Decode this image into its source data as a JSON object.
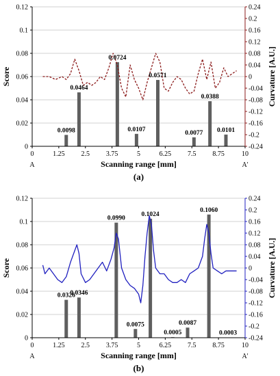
{
  "colors": {
    "bar": "#5f5f5f",
    "grid": "#d0d0d0",
    "curve_a": "#8b1a1a",
    "curve_b": "#1f1fbf",
    "axis_left": "#000000"
  },
  "chart_data": [
    {
      "type": "bar",
      "panel_label": "(a)",
      "xlabel": "Scanning range [mm]",
      "ylabel": "Score",
      "ylabel_right": "Curvature [A.U.]",
      "x_start_label": "A",
      "x_end_label": "A'",
      "xlim": [
        0,
        10
      ],
      "ylim": [
        0,
        0.12
      ],
      "ylim_right": [
        -0.24,
        0.24
      ],
      "x_ticks": [
        "0",
        "1.25",
        "2.5",
        "3.75",
        "5",
        "6.25",
        "7.5",
        "8.75",
        "10"
      ],
      "y_ticks": [
        "0",
        "0.02",
        "0.04",
        "0.06",
        "0.08",
        "0.1",
        "0.12"
      ],
      "y_ticks_right": [
        "-0.24",
        "-0.2",
        "-0.16",
        "-0.12",
        "-0.08",
        "-0.04",
        "0",
        "0.04",
        "0.08",
        "0.12",
        "0.16",
        "0.2",
        "0.24"
      ],
      "grid": "horizontal",
      "bars": {
        "x": [
          1.6,
          2.2,
          4.0,
          4.9,
          5.9,
          7.6,
          8.35,
          9.1
        ],
        "values": [
          0.0098,
          0.0464,
          0.0724,
          0.0107,
          0.0571,
          0.0077,
          0.0388,
          0.0101
        ],
        "labels": [
          "0.0098",
          "0.0464",
          "0.0724",
          "0.0107",
          "0.0571",
          "0.0077",
          "0.0388",
          "0.0101"
        ]
      },
      "curve": {
        "style": "dashed",
        "x": [
          0.5,
          0.8,
          1.1,
          1.4,
          1.6,
          1.8,
          2.0,
          2.2,
          2.4,
          2.6,
          2.8,
          3.0,
          3.2,
          3.4,
          3.6,
          3.8,
          4.0,
          4.2,
          4.4,
          4.6,
          4.8,
          5.0,
          5.2,
          5.4,
          5.6,
          5.8,
          6.0,
          6.2,
          6.4,
          6.6,
          6.8,
          7.0,
          7.2,
          7.4,
          7.6,
          7.8,
          8.0,
          8.2,
          8.4,
          8.6,
          8.8,
          9.0,
          9.2,
          9.4,
          9.6
        ],
        "y": [
          0.0,
          0.0,
          -0.01,
          0.0,
          -0.01,
          0.01,
          0.06,
          0.02,
          -0.03,
          -0.02,
          -0.03,
          -0.02,
          0.0,
          -0.01,
          0.03,
          0.08,
          0.04,
          -0.04,
          -0.07,
          0.04,
          -0.01,
          -0.04,
          -0.08,
          -0.02,
          0.03,
          0.08,
          0.05,
          -0.04,
          -0.05,
          -0.02,
          0.0,
          -0.01,
          -0.04,
          -0.06,
          -0.05,
          0.01,
          0.06,
          -0.01,
          0.05,
          -0.04,
          -0.02,
          0.03,
          0.0,
          0.01,
          0.02
        ]
      }
    },
    {
      "type": "bar",
      "panel_label": "(b)",
      "xlabel": "Scanning range [mm]",
      "ylabel": "Score",
      "ylabel_right": "Curvature [A.U.]",
      "x_start_label": "A",
      "x_end_label": "A'",
      "xlim": [
        0,
        10
      ],
      "ylim": [
        0,
        0.12
      ],
      "ylim_right": [
        -0.24,
        0.24
      ],
      "x_ticks": [
        "0",
        "1.25",
        "2.5",
        "3.75",
        "5",
        "6.25",
        "7.5",
        "8.75",
        "10"
      ],
      "y_ticks": [
        "0",
        "0.02",
        "0.04",
        "0.06",
        "0.08",
        "0.1",
        "0.12"
      ],
      "y_ticks_right": [
        "-0.24",
        "-0.2",
        "-0.16",
        "-0.12",
        "-0.08",
        "-0.04",
        "0",
        "0.04",
        "0.08",
        "0.12",
        "0.16",
        "0.2",
        "0.24"
      ],
      "grid": "horizontal",
      "bars": {
        "x": [
          1.6,
          2.2,
          3.95,
          4.85,
          5.55,
          6.6,
          7.3,
          8.3,
          9.2
        ],
        "values": [
          0.0326,
          0.0346,
          0.099,
          0.0075,
          0.1024,
          0.0005,
          0.0087,
          0.106,
          0.0003
        ],
        "labels": [
          "0.0326",
          "0.0346",
          "0.0990",
          "0.0075",
          "0.1024",
          "0.0005",
          "0.0087",
          "0.1060",
          "0.0003"
        ]
      },
      "curve": {
        "style": "solid",
        "x": [
          0.5,
          0.6,
          0.8,
          1.0,
          1.2,
          1.4,
          1.6,
          1.8,
          2.0,
          2.1,
          2.2,
          2.3,
          2.5,
          2.7,
          2.9,
          3.1,
          3.3,
          3.5,
          3.7,
          3.85,
          3.95,
          4.05,
          4.2,
          4.4,
          4.6,
          4.8,
          5.0,
          5.1,
          5.2,
          5.3,
          5.4,
          5.5,
          5.6,
          5.7,
          5.8,
          6.0,
          6.2,
          6.4,
          6.6,
          6.8,
          7.0,
          7.2,
          7.4,
          7.6,
          7.8,
          8.0,
          8.1,
          8.2,
          8.3,
          8.4,
          8.5,
          8.7,
          8.9,
          9.1,
          9.3,
          9.6
        ],
        "y": [
          0.01,
          -0.02,
          0.0,
          -0.02,
          -0.04,
          -0.05,
          -0.03,
          0.02,
          0.06,
          0.08,
          0.05,
          -0.02,
          -0.05,
          -0.04,
          -0.02,
          0.0,
          0.02,
          -0.01,
          0.03,
          0.07,
          0.12,
          0.1,
          0.0,
          -0.04,
          -0.06,
          -0.07,
          -0.09,
          -0.12,
          -0.06,
          0.04,
          0.12,
          0.18,
          0.15,
          0.06,
          0.0,
          -0.02,
          -0.02,
          -0.04,
          -0.05,
          -0.05,
          -0.04,
          -0.05,
          -0.02,
          -0.01,
          0.0,
          0.04,
          0.1,
          0.15,
          0.12,
          0.05,
          0.0,
          -0.01,
          -0.02,
          -0.01,
          -0.01,
          -0.01
        ]
      }
    }
  ]
}
